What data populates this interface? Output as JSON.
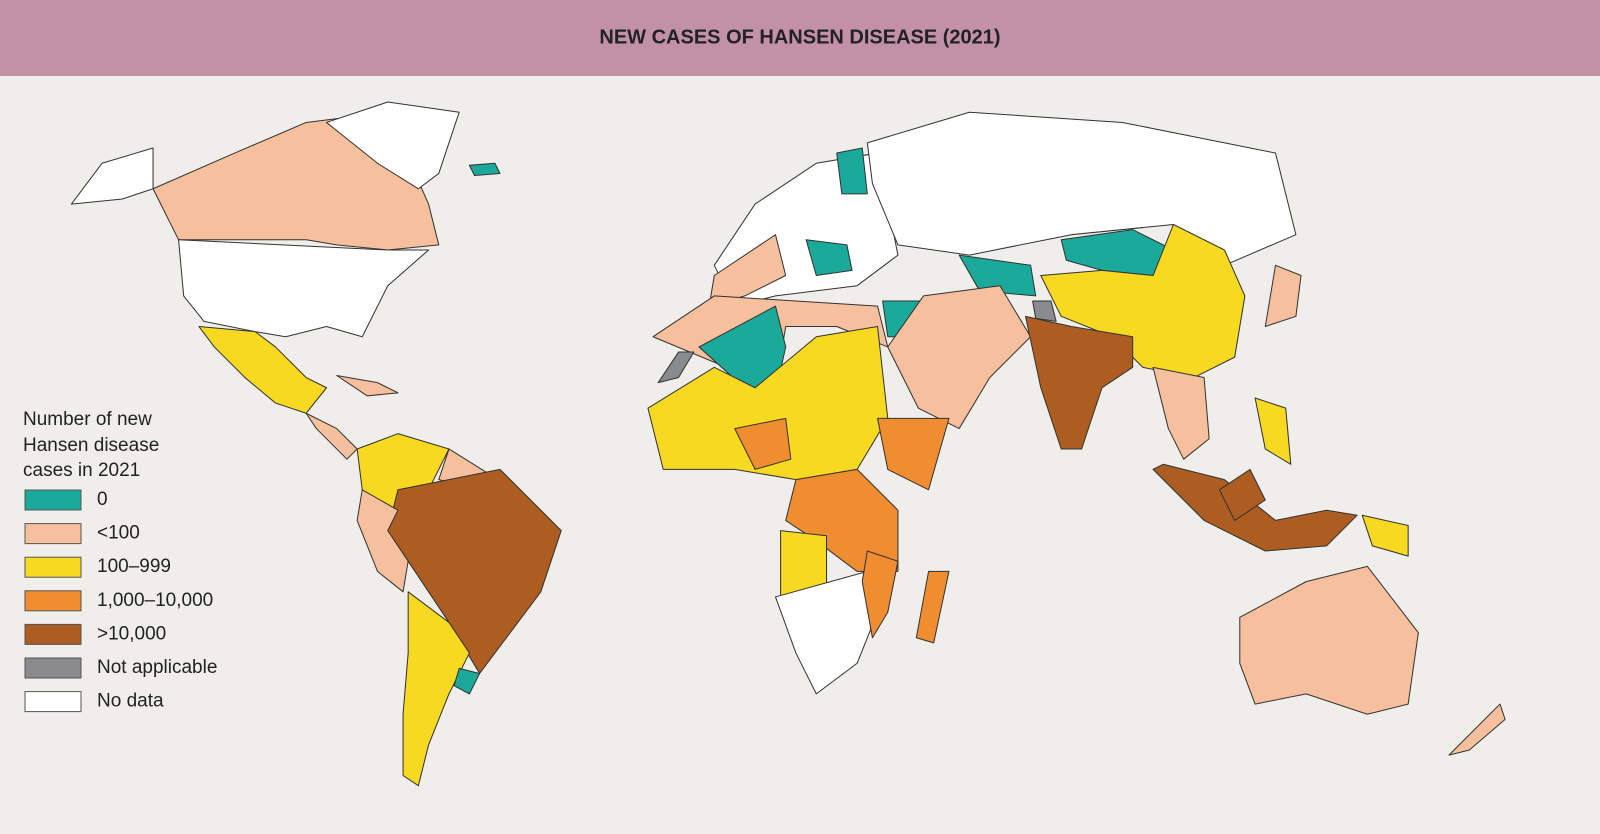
{
  "title": "NEW CASES OF HANSEN DISEASE (2021)",
  "legend": {
    "title_lines": [
      "Number of new",
      "Hansen disease",
      "cases in 2021"
    ],
    "items": [
      {
        "label": "0",
        "color": "#1aa99a"
      },
      {
        "label": "<100",
        "color": "#f6bf9d"
      },
      {
        "label": "100–999",
        "color": "#f8d922"
      },
      {
        "label": "1,000–10,000",
        "color": "#f08d31"
      },
      {
        "label": ">10,000",
        "color": "#ad5d22"
      },
      {
        "label": "Not applicable",
        "color": "#8a8b8e"
      },
      {
        "label": "No data",
        "color": "#ffffff"
      }
    ]
  }
}
